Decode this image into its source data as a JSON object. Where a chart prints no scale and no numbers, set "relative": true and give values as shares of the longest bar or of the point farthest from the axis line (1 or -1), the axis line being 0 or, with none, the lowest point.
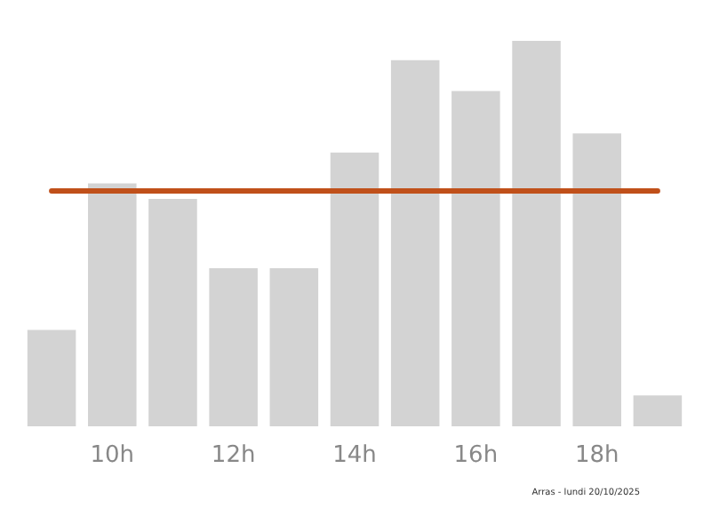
{
  "chart_data": {
    "type": "bar",
    "relative": true,
    "categories": [
      null,
      "10h",
      null,
      "12h",
      null,
      "14h",
      null,
      "16h",
      null,
      "18h",
      null
    ],
    "values": [
      0.25,
      0.63,
      0.59,
      0.41,
      0.41,
      0.71,
      0.95,
      0.87,
      1,
      0.76,
      0.08
    ],
    "color": "#d3d3d3",
    "ref_lines": [
      {
        "axis": "y",
        "value": 0.61,
        "label": null,
        "color": "#c0501a",
        "line_style": "solid"
      }
    ],
    "annotations": [
      "Arras - lundi 20/10/2025"
    ],
    "grid": false
  }
}
